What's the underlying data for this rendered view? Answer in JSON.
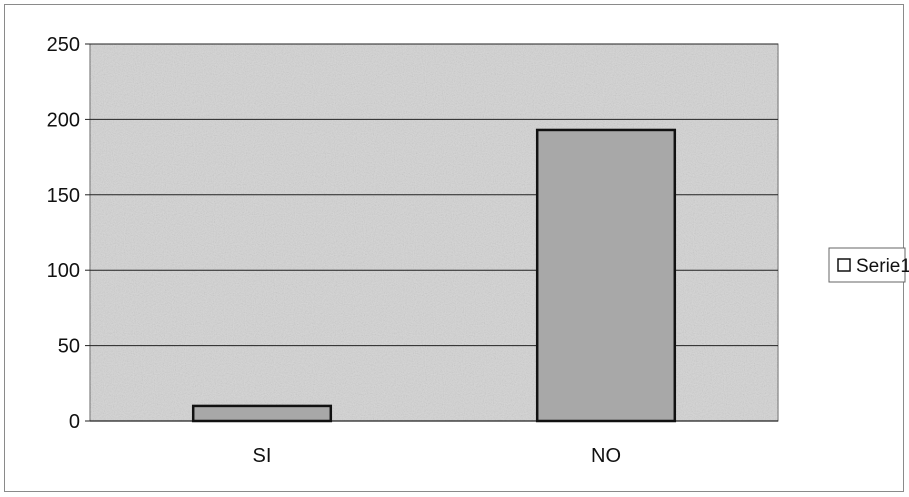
{
  "chart_data": {
    "type": "bar",
    "categories": [
      "SI",
      "NO"
    ],
    "series": [
      {
        "name": "Serie1",
        "values": [
          10,
          193
        ]
      }
    ],
    "ylim": [
      0,
      250
    ],
    "yticks": [
      0,
      50,
      100,
      150,
      200,
      250
    ],
    "grid": true,
    "legend_position": "right",
    "colors": {
      "plot_background": "#d4d4d4",
      "bar_fill": "#a8a8a8",
      "bar_stroke": "#111111",
      "gridline": "#222222"
    }
  }
}
